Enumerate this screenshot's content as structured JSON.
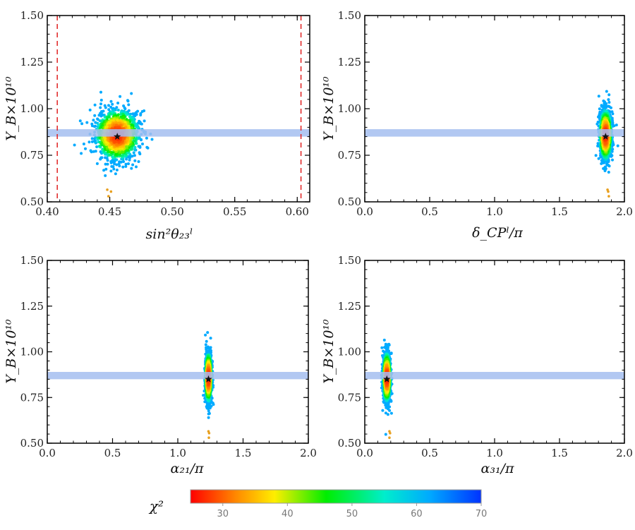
{
  "chart_data": [
    {
      "id": "p1",
      "type": "scatter",
      "xlabel": "sin²θ₂₃ˡ",
      "ylabel": "Y_B×10¹⁰",
      "xlim": [
        0.4,
        0.61
      ],
      "ylim": [
        0.5,
        1.5
      ],
      "xticks": [
        "0.40",
        "0.45",
        "0.50",
        "0.55",
        "0.60"
      ],
      "yticks": [
        "0.50",
        "0.75",
        "1.00",
        "1.25",
        "1.50"
      ],
      "band": [
        0.85,
        0.89
      ],
      "vlines": [
        0.408,
        0.603
      ],
      "cloud": {
        "cx": 0.456,
        "cy": 0.86,
        "sx": 0.0085,
        "sy": 0.065
      },
      "best_fit": {
        "x": 0.456,
        "y": 0.85
      },
      "outliers": [
        {
          "x": 0.448,
          "y": 0.565
        },
        {
          "x": 0.451,
          "y": 0.555
        },
        {
          "x": 0.449,
          "y": 0.53
        }
      ]
    },
    {
      "id": "p2",
      "type": "scatter",
      "xlabel": "δ_CPˡ/π",
      "ylabel": "Y_B×10¹⁰",
      "xlim": [
        0.0,
        2.0
      ],
      "ylim": [
        0.5,
        1.5
      ],
      "xticks": [
        "0.0",
        "0.5",
        "1.0",
        "1.5",
        "2.0"
      ],
      "yticks": [
        "0.50",
        "0.75",
        "1.00",
        "1.25",
        "1.50"
      ],
      "band": [
        0.85,
        0.89
      ],
      "cloud": {
        "cx": 1.855,
        "cy": 0.86,
        "sx": 0.022,
        "sy": 0.065
      },
      "best_fit": {
        "x": 1.855,
        "y": 0.85
      },
      "outliers": [
        {
          "x": 1.87,
          "y": 0.565
        },
        {
          "x": 1.875,
          "y": 0.555
        },
        {
          "x": 1.88,
          "y": 0.53
        }
      ]
    },
    {
      "id": "p3",
      "type": "scatter",
      "xlabel": "α₂₁/π",
      "ylabel": "Y_B×10¹⁰",
      "xlim": [
        0.0,
        2.0
      ],
      "ylim": [
        0.5,
        1.5
      ],
      "xticks": [
        "0.0",
        "0.5",
        "1.0",
        "1.5",
        "2.0"
      ],
      "yticks": [
        "0.50",
        "0.75",
        "1.00",
        "1.25",
        "1.50"
      ],
      "band": [
        0.85,
        0.89
      ],
      "cloud": {
        "cx": 1.235,
        "cy": 0.86,
        "sx": 0.012,
        "sy": 0.065
      },
      "best_fit": {
        "x": 1.235,
        "y": 0.85
      },
      "outliers": [
        {
          "x": 1.235,
          "y": 0.565
        },
        {
          "x": 1.24,
          "y": 0.555
        },
        {
          "x": 1.238,
          "y": 0.53
        }
      ]
    },
    {
      "id": "p4",
      "type": "scatter",
      "xlabel": "α₃₁/π",
      "ylabel": "Y_B×10¹⁰",
      "xlim": [
        0.0,
        2.0
      ],
      "ylim": [
        0.5,
        1.5
      ],
      "xticks": [
        "0.0",
        "0.5",
        "1.0",
        "1.5",
        "2.0"
      ],
      "yticks": [
        "0.50",
        "0.75",
        "1.00",
        "1.25",
        "1.50"
      ],
      "band": [
        0.85,
        0.89
      ],
      "cloud": {
        "cx": 0.17,
        "cy": 0.86,
        "sx": 0.014,
        "sy": 0.065
      },
      "best_fit": {
        "x": 0.17,
        "y": 0.85
      },
      "outliers": [
        {
          "x": 0.19,
          "y": 0.565
        },
        {
          "x": 0.195,
          "y": 0.555
        },
        {
          "x": 0.19,
          "y": 0.53
        }
      ]
    }
  ],
  "colorbar": {
    "label": "χ²",
    "min": 25,
    "max": 70,
    "ticks": [
      "30",
      "40",
      "50",
      "60",
      "70"
    ],
    "tick_values": [
      30,
      40,
      50,
      60,
      70
    ],
    "stops": [
      {
        "v": 25,
        "color": "#ff0000"
      },
      {
        "v": 32,
        "color": "#ff8800"
      },
      {
        "v": 38,
        "color": "#ffee00"
      },
      {
        "v": 46,
        "color": "#00ee00"
      },
      {
        "v": 55,
        "color": "#00eecc"
      },
      {
        "v": 62,
        "color": "#00aaff"
      },
      {
        "v": 70,
        "color": "#0033ff"
      }
    ]
  },
  "colors": {
    "band": "#a4bef0",
    "vline": "#e02020",
    "star": "#111111",
    "outlier": "#e8a020"
  }
}
